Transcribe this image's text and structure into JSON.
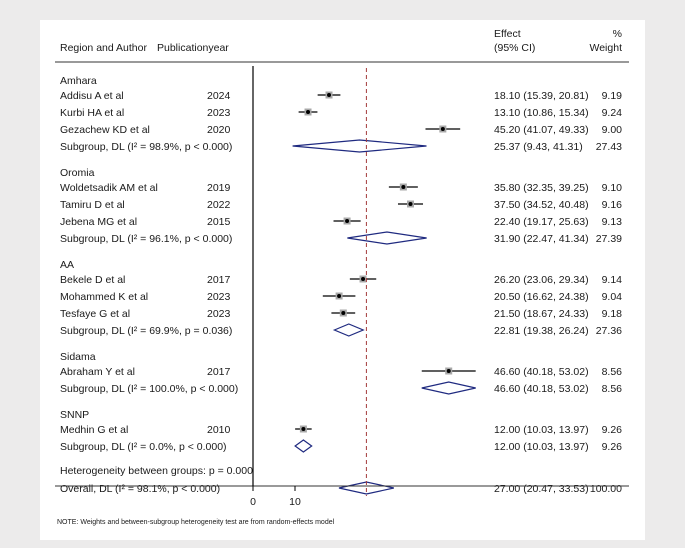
{
  "chart_data": {
    "type": "forest",
    "xlim": [
      0,
      60
    ],
    "xticks": [
      "0",
      "10"
    ],
    "reference_line": 27.0,
    "headers": {
      "region_author": "Region and Author",
      "year": "Publicationyear",
      "effect_line1": "Effect",
      "effect_line2": "(95% CI)",
      "weight_line1": "%",
      "weight_line2": "Weight"
    },
    "groups": [
      {
        "name": "Amhara",
        "studies": [
          {
            "author": "Addisu A et al",
            "year": "2024",
            "effect": 18.1,
            "lo": 15.39,
            "hi": 20.81,
            "ci_text": "18.10 (15.39, 20.81)",
            "weight": "9.19"
          },
          {
            "author": "Kurbi HA et al",
            "year": "2023",
            "effect": 13.1,
            "lo": 10.86,
            "hi": 15.34,
            "ci_text": "13.10 (10.86, 15.34)",
            "weight": "9.24"
          },
          {
            "author": "Gezachew KD et al",
            "year": "2020",
            "effect": 45.2,
            "lo": 41.07,
            "hi": 49.33,
            "ci_text": "45.20 (41.07, 49.33)",
            "weight": "9.00"
          }
        ],
        "subgroup": {
          "label": "Subgroup, DL (I² = 98.9%, p < 0.000)",
          "effect": 25.37,
          "lo": 9.43,
          "hi": 41.31,
          "ci_text": "25.37 (9.43, 41.31)",
          "weight": "27.43"
        }
      },
      {
        "name": "Oromia",
        "studies": [
          {
            "author": "Woldetsadik AM et al",
            "year": "2019",
            "effect": 35.8,
            "lo": 32.35,
            "hi": 39.25,
            "ci_text": "35.80 (32.35, 39.25)",
            "weight": "9.10"
          },
          {
            "author": "Tamiru D et al",
            "year": "2022",
            "effect": 37.5,
            "lo": 34.52,
            "hi": 40.48,
            "ci_text": "37.50 (34.52, 40.48)",
            "weight": "9.16"
          },
          {
            "author": "Jebena MG et al",
            "year": "2015",
            "effect": 22.4,
            "lo": 19.17,
            "hi": 25.63,
            "ci_text": "22.40 (19.17, 25.63)",
            "weight": "9.13"
          }
        ],
        "subgroup": {
          "label": "Subgroup, DL (I² = 96.1%, p < 0.000)",
          "effect": 31.9,
          "lo": 22.47,
          "hi": 41.34,
          "ci_text": "31.90 (22.47, 41.34)",
          "weight": "27.39"
        }
      },
      {
        "name": "AA",
        "studies": [
          {
            "author": "Bekele D et al",
            "year": "2017",
            "effect": 26.2,
            "lo": 23.06,
            "hi": 29.34,
            "ci_text": "26.20 (23.06, 29.34)",
            "weight": "9.14"
          },
          {
            "author": "Mohammed K et al",
            "year": "2023",
            "effect": 20.5,
            "lo": 16.62,
            "hi": 24.38,
            "ci_text": "20.50 (16.62, 24.38)",
            "weight": "9.04"
          },
          {
            "author": "Tesfaye G et al",
            "year": "2023",
            "effect": 21.5,
            "lo": 18.67,
            "hi": 24.33,
            "ci_text": "21.50 (18.67, 24.33)",
            "weight": "9.18"
          }
        ],
        "subgroup": {
          "label": "Subgroup, DL (I² = 69.9%, p = 0.036)",
          "effect": 22.81,
          "lo": 19.38,
          "hi": 26.24,
          "ci_text": "22.81 (19.38, 26.24)",
          "weight": "27.36"
        }
      },
      {
        "name": "Sidama",
        "studies": [
          {
            "author": "Abraham Y et al",
            "year": "2017",
            "effect": 46.6,
            "lo": 40.18,
            "hi": 53.02,
            "ci_text": "46.60 (40.18, 53.02)",
            "weight": "8.56"
          }
        ],
        "subgroup": {
          "label": "Subgroup, DL (I² = 100.0%, p < 0.000)",
          "effect": 46.6,
          "lo": 40.18,
          "hi": 53.02,
          "ci_text": "46.60 (40.18, 53.02)",
          "weight": "8.56"
        }
      },
      {
        "name": "SNNP",
        "studies": [
          {
            "author": "Medhin G et al",
            "year": "2010",
            "effect": 12.0,
            "lo": 10.03,
            "hi": 13.97,
            "ci_text": "12.00 (10.03, 13.97)",
            "weight": "9.26"
          }
        ],
        "subgroup": {
          "label": "Subgroup, DL (I² = 0.0%, p < 0.000)",
          "effect": 12.0,
          "lo": 10.03,
          "hi": 13.97,
          "ci_text": "12.00 (10.03, 13.97)",
          "weight": "9.26"
        }
      }
    ],
    "heterogeneity": "Heterogeneity between groups: p = 0.000",
    "overall": {
      "label": "Overall, DL (I² = 98.1%, p < 0.000)",
      "effect": 27.0,
      "lo": 20.47,
      "hi": 33.53,
      "ci_text": "27.00 (20.47, 33.53)",
      "weight": "100.00"
    },
    "note": "NOTE: Weights and between-subgroup heterogeneity test are from random-effects model"
  }
}
